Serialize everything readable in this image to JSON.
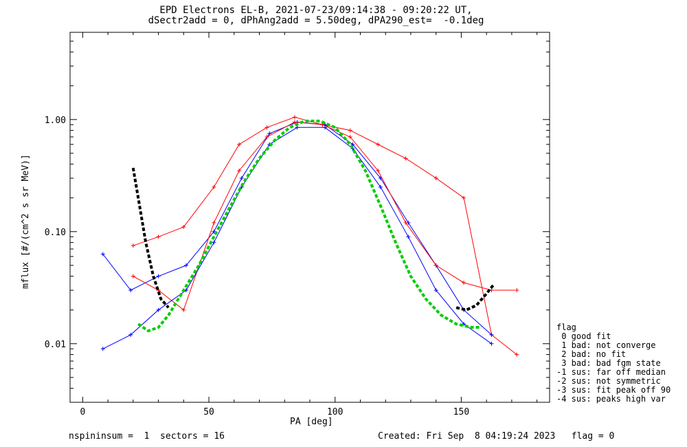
{
  "header": {
    "title_line1": "EPD Electrons EL-B, 2021-07-23/09:14:38 - 09:20:22 UT,",
    "title_line2": "dSectr2add = 0, dPhAng2add = 5.50deg, dPA290_est=  -0.1deg"
  },
  "footer": {
    "left": "nspininsum =  1  sectors = 16",
    "right": "Created: Fri Sep  8 04:19:24 2023   flag = 0"
  },
  "legend": {
    "title": "flag",
    "items": [
      " 0 good fit",
      " 1 bad: not converge",
      " 2 bad: no fit",
      " 3 bad: bad fgm state",
      "-1 sus: far off median",
      "-2 sus: not symmetric",
      "-3 sus: fit peak off 90",
      "-4 sus: peaks high var"
    ]
  },
  "chart_data": {
    "type": "line",
    "xlabel": "PA [deg]",
    "ylabel": "mflux [#/(cm^2 s sr MeV)]",
    "xlim": [
      -5,
      185
    ],
    "ylim": [
      0.003,
      6
    ],
    "ylog": true,
    "x_ticks": [
      0,
      50,
      100,
      150
    ],
    "x_tick_labels": [
      "0",
      "50",
      "100",
      "150"
    ],
    "y_ticks": [
      0.01,
      0.1,
      1.0
    ],
    "y_tick_labels": [
      "0.01",
      "0.10",
      "1.00"
    ],
    "colors": {
      "red_series": "#ff0000",
      "blue_series": "#0000ff",
      "fit": "#00cc00",
      "fit_ext": "#000000"
    },
    "series": [
      {
        "color": "#ff0000",
        "x": [
          20,
          30,
          40,
          52,
          62,
          73,
          84,
          95,
          106,
          117,
          128,
          140,
          151,
          162,
          172
        ],
        "y": [
          0.075,
          0.09,
          0.11,
          0.25,
          0.6,
          0.85,
          1.05,
          0.9,
          0.8,
          0.6,
          0.45,
          0.3,
          0.2,
          0.012,
          0.008
        ]
      },
      {
        "color": "#0000ff",
        "x": [
          8,
          19,
          30,
          41,
          52,
          63,
          74,
          85,
          96,
          107,
          118,
          129,
          140,
          151,
          162
        ],
        "y": [
          0.063,
          0.03,
          0.04,
          0.05,
          0.1,
          0.3,
          0.75,
          0.95,
          0.9,
          0.6,
          0.3,
          0.12,
          0.05,
          0.02,
          0.012
        ]
      },
      {
        "color": "#ff0000",
        "x": [
          20,
          30,
          40,
          52,
          62,
          73,
          84,
          95,
          106,
          117,
          128,
          140,
          151,
          162,
          172
        ],
        "y": [
          0.04,
          0.03,
          0.02,
          0.12,
          0.35,
          0.7,
          0.95,
          0.9,
          0.7,
          0.35,
          0.12,
          0.05,
          0.035,
          0.03,
          0.03
        ]
      },
      {
        "color": "#0000ff",
        "x": [
          8,
          19,
          30,
          41,
          52,
          63,
          74,
          85,
          96,
          107,
          118,
          129,
          140,
          151,
          162
        ],
        "y": [
          0.009,
          0.012,
          0.02,
          0.03,
          0.08,
          0.25,
          0.6,
          0.85,
          0.85,
          0.55,
          0.25,
          0.09,
          0.03,
          0.015,
          0.01
        ]
      }
    ],
    "fit": {
      "color": "#00cc00",
      "x": [
        22,
        26,
        30,
        34,
        40,
        46,
        52,
        58,
        64,
        70,
        76,
        82,
        88,
        94,
        100,
        106,
        112,
        118,
        124,
        130,
        136,
        142,
        148,
        154,
        158
      ],
      "y": [
        0.015,
        0.013,
        0.014,
        0.018,
        0.03,
        0.05,
        0.09,
        0.16,
        0.28,
        0.45,
        0.65,
        0.85,
        0.97,
        0.97,
        0.85,
        0.6,
        0.35,
        0.17,
        0.08,
        0.04,
        0.025,
        0.018,
        0.015,
        0.014,
        0.014
      ]
    },
    "fit_ext_left": {
      "x": [
        20,
        22,
        25,
        28,
        31,
        34
      ],
      "y": [
        0.37,
        0.2,
        0.08,
        0.04,
        0.025,
        0.021
      ]
    },
    "fit_ext_right": {
      "x": [
        148,
        152,
        156,
        160,
        163
      ],
      "y": [
        0.021,
        0.02,
        0.022,
        0.028,
        0.034
      ]
    }
  }
}
